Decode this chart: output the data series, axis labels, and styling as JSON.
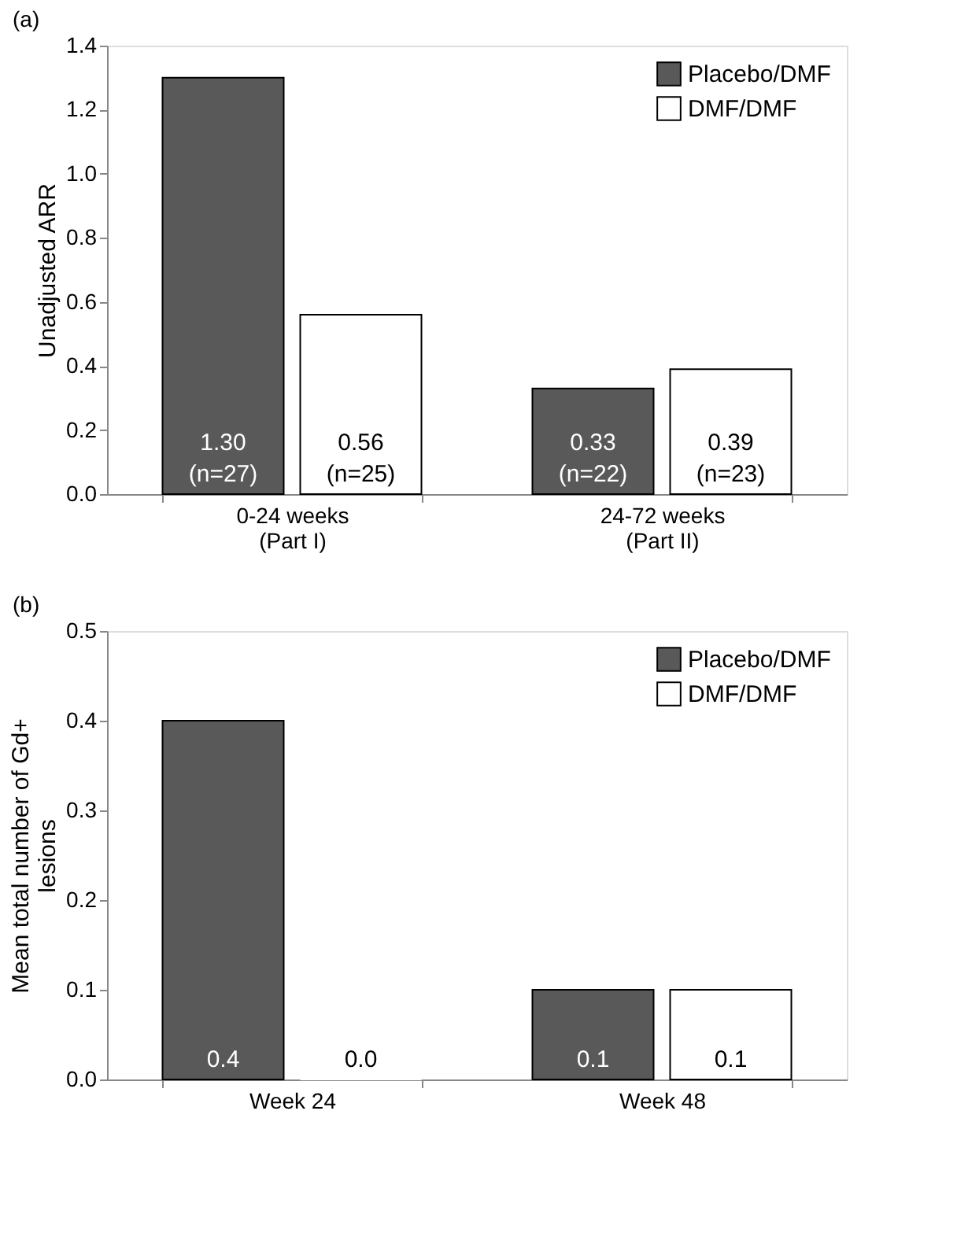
{
  "chart_data": [
    {
      "type": "bar",
      "title": "(a)",
      "ylabel": "Unadjusted ARR",
      "categories": [
        "0-24 weeks\n(Part I)",
        "24-72 weeks\n(Part II)"
      ],
      "series": [
        {
          "name": "Placebo/DMF",
          "color": "#595959",
          "values": [
            1.3,
            0.33
          ],
          "value_labels": [
            "1.30\n(n=27)",
            "0.33\n(n=22)"
          ]
        },
        {
          "name": "DMF/DMF",
          "color": "#ffffff",
          "values": [
            0.56,
            0.39
          ],
          "value_labels": [
            "0.56\n(n=25)",
            "0.39\n(n=23)"
          ]
        }
      ],
      "ylim": [
        0,
        1.4
      ],
      "yticks": [
        {
          "value": 0,
          "label": "0.0"
        },
        0.2,
        0.4,
        0.6,
        0.8,
        {
          "value": 1,
          "label": "1.0"
        },
        1.2,
        1.4
      ],
      "grid": false,
      "legend": "top right"
    },
    {
      "type": "bar",
      "title": "(b)",
      "ylabel": "Mean total number of Gd+\nlesions",
      "categories": [
        "Week 24",
        "Week 48"
      ],
      "series": [
        {
          "name": "Placebo/DMF",
          "color": "#595959",
          "values": [
            0.4,
            0.1
          ],
          "value_labels": [
            "0.4",
            "0.1"
          ]
        },
        {
          "name": "DMF/DMF",
          "color": "#ffffff",
          "values": [
            0.0,
            0.1
          ],
          "value_labels": [
            "0.0",
            "0.1"
          ]
        }
      ],
      "ylim": [
        0,
        0.5
      ],
      "yticks": [
        {
          "value": 0,
          "label": "0.0"
        },
        {
          "value": 0.1,
          "label": "0.1"
        },
        {
          "value": 0.2,
          "label": "0.2"
        },
        {
          "value": 0.3,
          "label": "0.3"
        },
        {
          "value": 0.4,
          "label": "0.4"
        },
        {
          "value": 0.5,
          "label": "0.5"
        }
      ],
      "grid": false,
      "legend": "top right"
    }
  ]
}
